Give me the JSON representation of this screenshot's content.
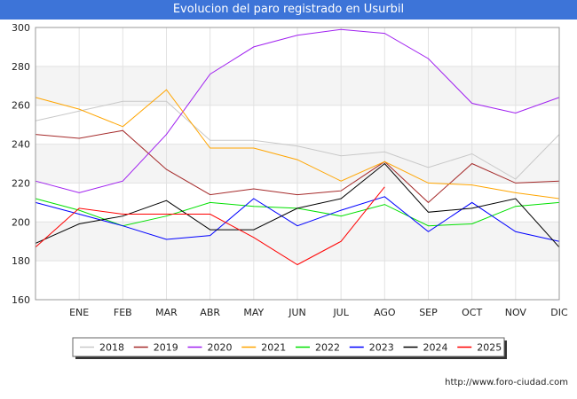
{
  "chart_data": {
    "type": "line",
    "title": "Evolucion del paro registrado en Usurbil",
    "xlabel": "",
    "ylabel": "",
    "categories": [
      "",
      "ENE",
      "FEB",
      "MAR",
      "ABR",
      "MAY",
      "JUN",
      "JUL",
      "AGO",
      "SEP",
      "OCT",
      "NOV",
      "DIC"
    ],
    "ylim": [
      160,
      300
    ],
    "yticks": [
      160,
      180,
      200,
      220,
      240,
      260,
      280,
      300
    ],
    "grid": true,
    "legend_position": "bottom",
    "series": [
      {
        "name": "2018",
        "color": "#c8c8c8",
        "values": [
          252,
          257,
          262,
          262,
          242,
          242,
          239,
          234,
          236,
          228,
          235,
          222,
          245
        ]
      },
      {
        "name": "2019",
        "color": "#a52a2a",
        "values": [
          245,
          243,
          247,
          227,
          214,
          217,
          214,
          216,
          231,
          210,
          230,
          220,
          221
        ]
      },
      {
        "name": "2020",
        "color": "#a020f0",
        "values": [
          221,
          215,
          221,
          245,
          276,
          290,
          296,
          299,
          297,
          284,
          261,
          256,
          264
        ]
      },
      {
        "name": "2021",
        "color": "#ffa500",
        "values": [
          264,
          258,
          249,
          268,
          238,
          238,
          232,
          221,
          231,
          220,
          219,
          215,
          212
        ]
      },
      {
        "name": "2022",
        "color": "#00e000",
        "values": [
          212,
          206,
          198,
          203,
          210,
          208,
          207,
          203,
          209,
          198,
          199,
          208,
          210
        ]
      },
      {
        "name": "2023",
        "color": "#0000ff",
        "values": [
          210,
          204,
          198,
          191,
          193,
          212,
          198,
          206,
          213,
          195,
          210,
          195,
          190
        ]
      },
      {
        "name": "2024",
        "color": "#000000",
        "values": [
          189,
          199,
          203,
          211,
          196,
          196,
          207,
          212,
          230,
          205,
          207,
          212,
          187
        ]
      },
      {
        "name": "2025",
        "color": "#ff0000",
        "values": [
          187,
          207,
          204,
          204,
          204,
          192,
          178,
          190,
          218,
          null,
          null,
          null,
          null
        ]
      }
    ]
  },
  "footer": {
    "url": "http://www.foro-ciudad.com"
  }
}
